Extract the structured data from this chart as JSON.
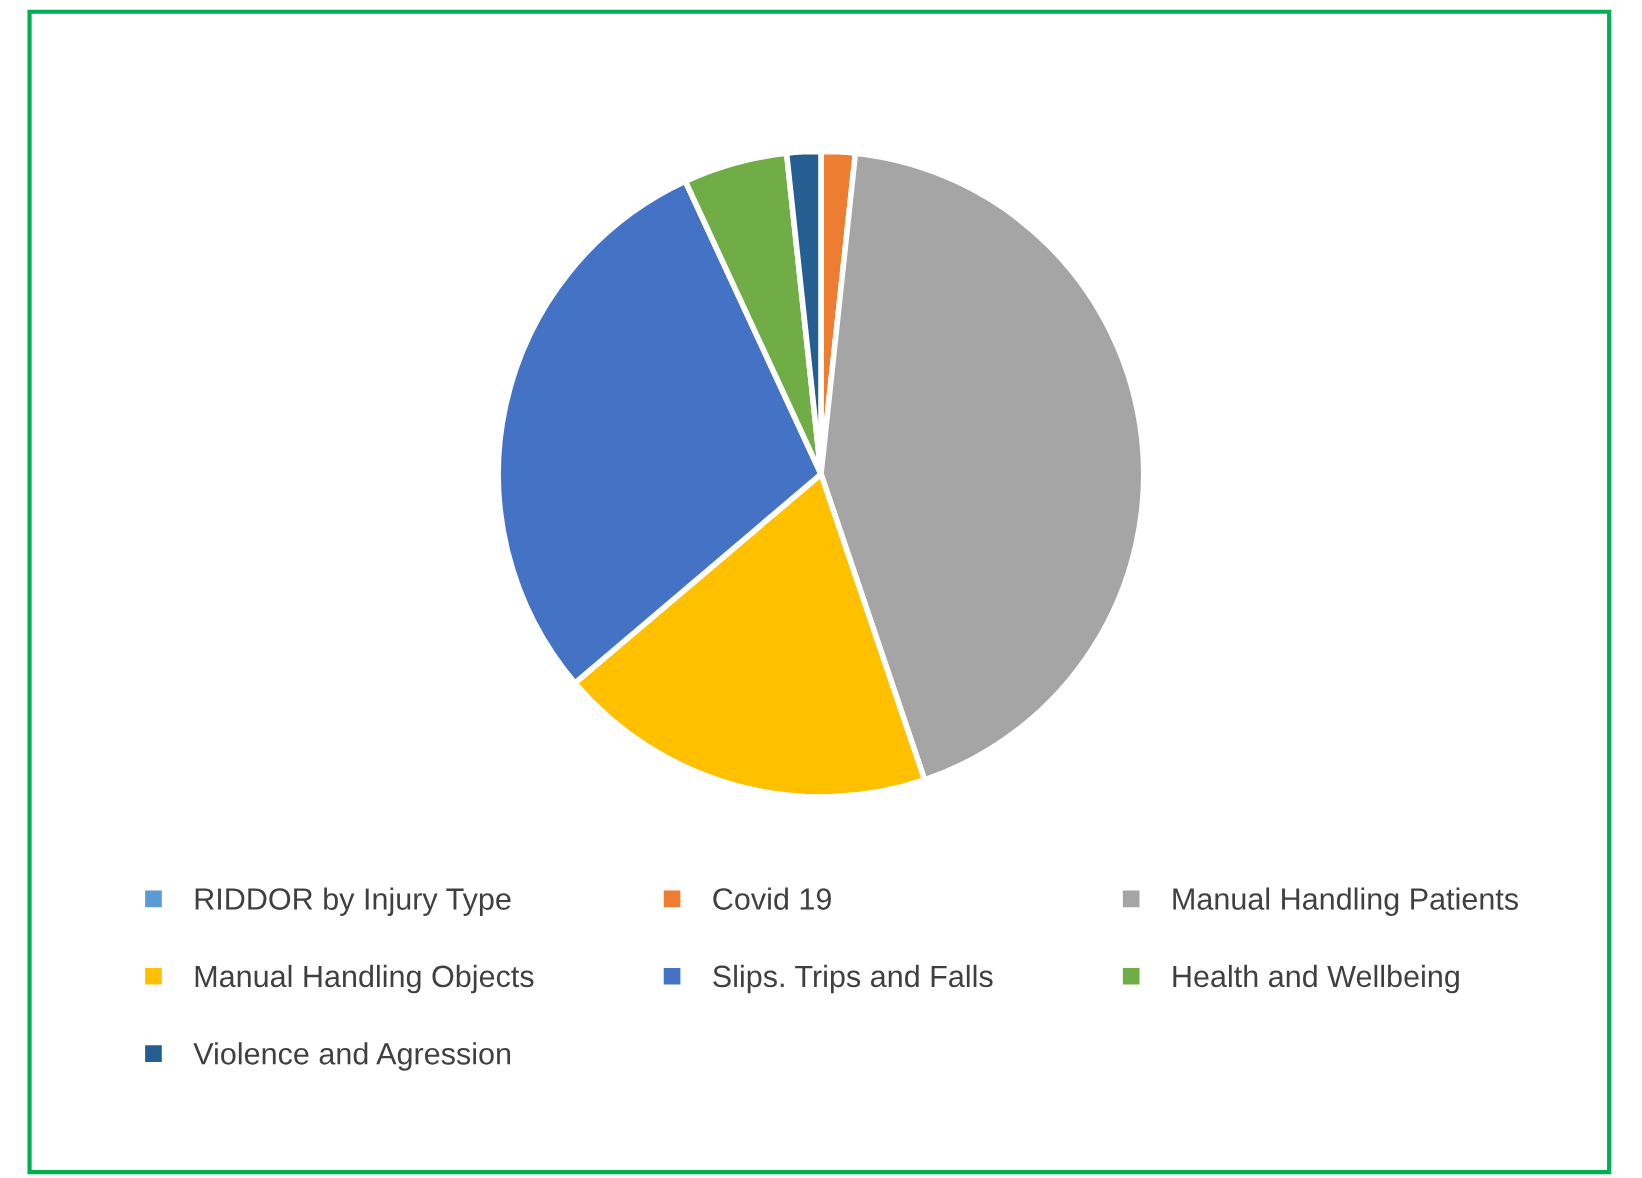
{
  "chart_data": {
    "type": "pie",
    "categories": [
      "RIDDOR by Injury Type",
      "Covid 19",
      "Manual Handling Patients",
      "Manual Handling Objects",
      "Slips. Trips and Falls",
      "Health and Wellbeing",
      "Violence and Agression"
    ],
    "values": [
      0,
      1.7,
      43.1,
      19.0,
      29.3,
      5.2,
      1.7
    ],
    "colors": [
      "#5b9bd5",
      "#ed7d31",
      "#a5a5a5",
      "#ffc000",
      "#4472c4",
      "#70ad47",
      "#255e91"
    ],
    "legend": "bottom"
  }
}
